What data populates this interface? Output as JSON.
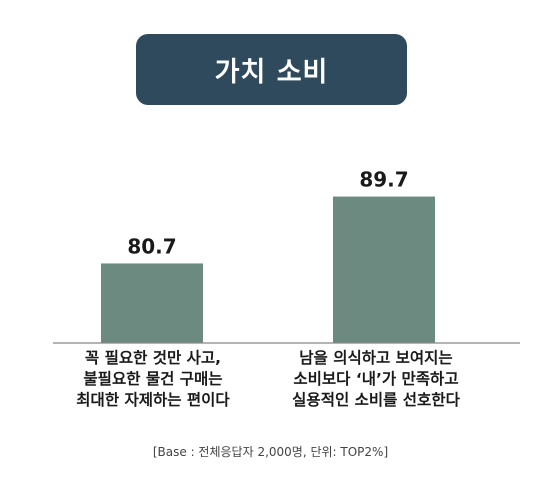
{
  "chart_data": {
    "type": "bar",
    "title": "가치 소비",
    "categories": [
      [
        "꼭 필요한 것만 사고,",
        "불필요한 물건 구매는",
        "최대한 자제하는 편이다"
      ],
      [
        "남을 의식하고 보여지는",
        "소비보다 ‘내’가 만족하고",
        "실용적인 소비를 선호한다"
      ]
    ],
    "values": [
      80.7,
      89.7
    ],
    "value_labels": [
      "80.7",
      "89.7"
    ],
    "bar_color": "#6d8a80",
    "ylim": [
      70,
      95
    ],
    "grid": false,
    "note": "[Base : 전체응답자 2,000명, 단위: TOP2%]"
  }
}
